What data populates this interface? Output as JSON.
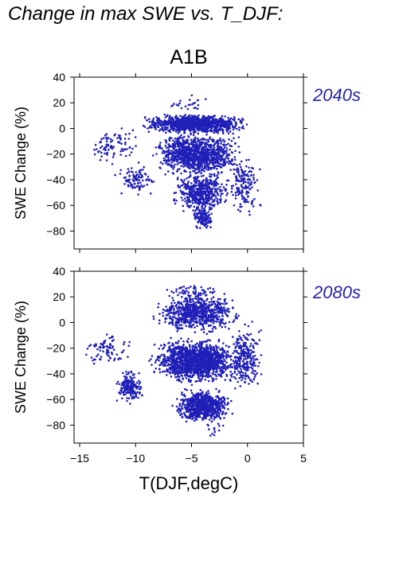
{
  "page": {
    "title": "Change in max SWE vs. T_DJF:",
    "scenario": "A1B",
    "xlabel": "T(DJF,degC)",
    "point_color": "#2020b8",
    "period_color": "#2424a8"
  },
  "chart_data": [
    {
      "type": "scatter",
      "period_label": "2040s",
      "ylabel": "SWE Change (%)",
      "xlim": [
        -15.5,
        5
      ],
      "ylim": [
        -94,
        40
      ],
      "x_ticks": [
        -15,
        -10,
        -5,
        0,
        5
      ],
      "y_ticks": [
        40,
        20,
        0,
        -20,
        -40,
        -60,
        -80
      ],
      "y_tick_labels": [
        "40",
        "20",
        "0",
        "−20",
        "−40",
        "−60",
        "−80"
      ],
      "grid": false,
      "clusters": [
        {
          "x_range": [
            -10,
            0.5
          ],
          "y_range": [
            -5,
            12
          ],
          "count": 1100
        },
        {
          "x_range": [
            -9,
            0
          ],
          "y_range": [
            -40,
            0
          ],
          "count": 1100
        },
        {
          "x_range": [
            -7,
            -1
          ],
          "y_range": [
            -70,
            -30
          ],
          "count": 500
        },
        {
          "x_range": [
            -5,
            -3
          ],
          "y_range": [
            -80,
            -60
          ],
          "count": 120
        },
        {
          "x_range": [
            -14.5,
            -9
          ],
          "y_range": [
            -30,
            5
          ],
          "count": 90
        },
        {
          "x_range": [
            -12,
            -8
          ],
          "y_range": [
            -55,
            -25
          ],
          "count": 100
        },
        {
          "x_range": [
            -2,
            1.5
          ],
          "y_range": [
            -70,
            -20
          ],
          "count": 150
        },
        {
          "x_range": [
            -8,
            -3
          ],
          "y_range": [
            12,
            28
          ],
          "count": 25
        }
      ]
    },
    {
      "type": "scatter",
      "period_label": "2080s",
      "ylabel": "SWE Change (%)",
      "xlim": [
        -15.5,
        5
      ],
      "ylim": [
        -94,
        40
      ],
      "x_ticks": [
        -15,
        -10,
        -5,
        0,
        5
      ],
      "x_tick_labels": [
        "−15",
        "−10",
        "−5",
        "0",
        "5"
      ],
      "y_ticks": [
        40,
        20,
        0,
        -20,
        -40,
        -60,
        -80
      ],
      "y_tick_labels": [
        "40",
        "20",
        "0",
        "−20",
        "−40",
        "−60",
        "−80"
      ],
      "grid": false,
      "clusters": [
        {
          "x_range": [
            -9,
            0
          ],
          "y_range": [
            -10,
            25
          ],
          "count": 700
        },
        {
          "x_range": [
            -9,
            0
          ],
          "y_range": [
            -50,
            -10
          ],
          "count": 1500
        },
        {
          "x_range": [
            -7,
            -1
          ],
          "y_range": [
            -80,
            -50
          ],
          "count": 700
        },
        {
          "x_range": [
            -12,
            -9
          ],
          "y_range": [
            -65,
            -35
          ],
          "count": 180
        },
        {
          "x_range": [
            -15,
            -10
          ],
          "y_range": [
            -35,
            -5
          ],
          "count": 80
        },
        {
          "x_range": [
            -2,
            1.5
          ],
          "y_range": [
            -60,
            5
          ],
          "count": 250
        },
        {
          "x_range": [
            -8,
            -1
          ],
          "y_range": [
            18,
            30
          ],
          "count": 60
        },
        {
          "x_range": [
            -4,
            -2
          ],
          "y_range": [
            -90,
            -75
          ],
          "count": 15
        }
      ]
    }
  ]
}
